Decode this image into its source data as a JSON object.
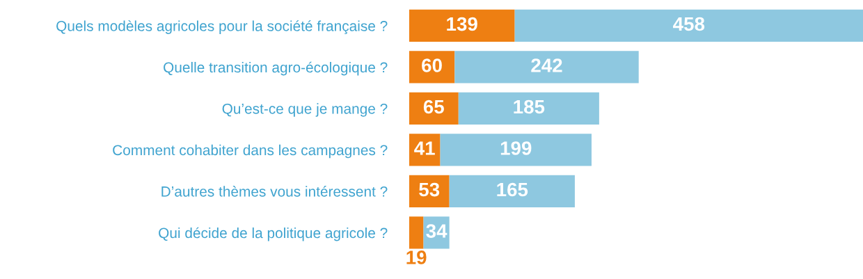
{
  "chart_data": {
    "type": "bar",
    "orientation": "horizontal",
    "stacked": true,
    "data_labels": true,
    "categories": [
      "Quels modèles agricoles pour la société française ?",
      "Quelle transition agro-écologique ?",
      "Qu’est-ce que je mange ?",
      "Comment cohabiter dans les campagnes ?",
      "D’autres thèmes vous intéressent ?",
      "Qui décide de la politique agricole ?"
    ],
    "series": [
      {
        "color": "#ee7f12",
        "values": [
          139,
          60,
          65,
          41,
          53,
          19
        ]
      },
      {
        "color": "#8ec8e0",
        "values": [
          458,
          242,
          185,
          199,
          165,
          34
        ]
      }
    ],
    "grid": false,
    "legend": false
  }
}
